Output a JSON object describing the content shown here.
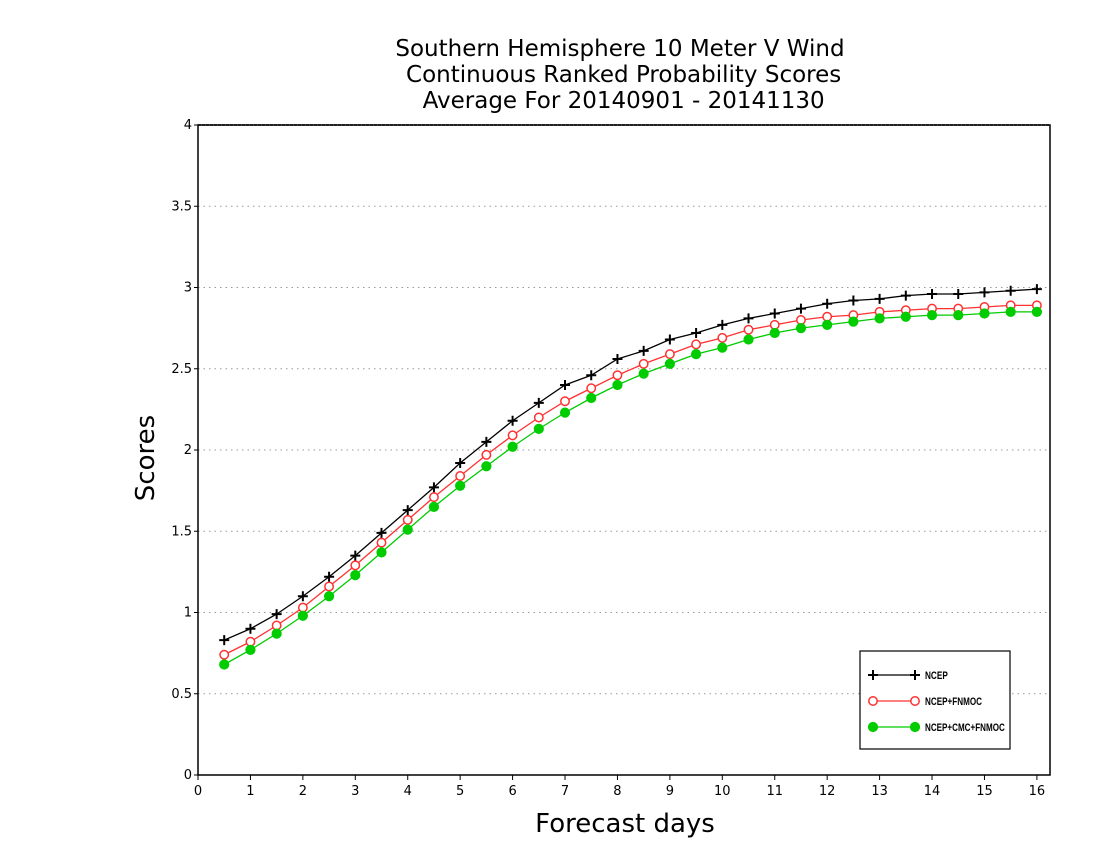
{
  "chart_data": {
    "type": "line",
    "title": [
      "Southern Hemisphere 10 Meter V Wind",
      " Continuous Ranked Probability Scores",
      " Average For 20140901 - 20141130"
    ],
    "xlabel": "Forecast days",
    "ylabel": "Scores",
    "xlim": [
      0,
      16.25
    ],
    "ylim": [
      0,
      4
    ],
    "xticks": [
      0,
      1,
      2,
      3,
      4,
      5,
      6,
      7,
      8,
      9,
      10,
      11,
      12,
      13,
      14,
      15,
      16
    ],
    "yticks": [
      0,
      0.5,
      1,
      1.5,
      2,
      2.5,
      3,
      3.5,
      4
    ],
    "ytick_labels": [
      "0",
      "0.5",
      "1",
      "1.5",
      "2",
      "2.5",
      "3",
      "3.5",
      "4"
    ],
    "grid": "horizontal dotted",
    "legend_position": "bottom-right",
    "x": [
      0.5,
      1,
      1.5,
      2,
      2.5,
      3,
      3.5,
      4,
      4.5,
      5,
      5.5,
      6,
      6.5,
      7,
      7.5,
      8,
      8.5,
      9,
      9.5,
      10,
      10.5,
      11,
      11.5,
      12,
      12.5,
      13,
      13.5,
      14,
      14.5,
      15,
      15.5,
      16
    ],
    "series": [
      {
        "name": "NCEP",
        "color": "#000000",
        "marker": "plus",
        "values": [
          0.83,
          0.9,
          0.99,
          1.1,
          1.22,
          1.35,
          1.49,
          1.63,
          1.77,
          1.92,
          2.05,
          2.18,
          2.29,
          2.4,
          2.46,
          2.56,
          2.61,
          2.68,
          2.72,
          2.77,
          2.81,
          2.84,
          2.87,
          2.9,
          2.92,
          2.93,
          2.95,
          2.96,
          2.96,
          2.97,
          2.98,
          2.99
        ]
      },
      {
        "name": "NCEP+FNMOC",
        "color": "#ff3030",
        "marker": "open-circle",
        "values": [
          0.74,
          0.82,
          0.92,
          1.03,
          1.16,
          1.29,
          1.43,
          1.57,
          1.71,
          1.84,
          1.97,
          2.09,
          2.2,
          2.3,
          2.38,
          2.46,
          2.53,
          2.59,
          2.65,
          2.69,
          2.74,
          2.77,
          2.8,
          2.82,
          2.83,
          2.85,
          2.86,
          2.87,
          2.87,
          2.88,
          2.89,
          2.89
        ]
      },
      {
        "name": "NCEP+CMC+FNMOC",
        "color": "#00cc00",
        "marker": "filled-circle",
        "values": [
          0.68,
          0.77,
          0.87,
          0.98,
          1.1,
          1.23,
          1.37,
          1.51,
          1.65,
          1.78,
          1.9,
          2.02,
          2.13,
          2.23,
          2.32,
          2.4,
          2.47,
          2.53,
          2.59,
          2.63,
          2.68,
          2.72,
          2.75,
          2.77,
          2.79,
          2.81,
          2.82,
          2.83,
          2.83,
          2.84,
          2.85,
          2.85
        ]
      }
    ]
  }
}
